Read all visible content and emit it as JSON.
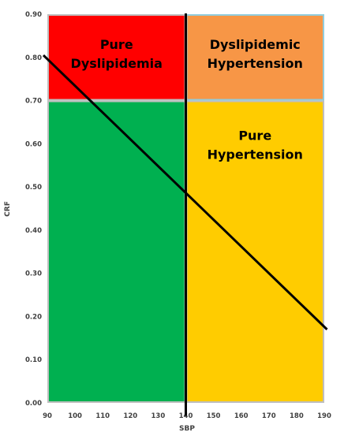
{
  "chart_data": {
    "type": "area",
    "xlabel": "SBP",
    "ylabel": "CRF",
    "xlim": [
      90,
      190
    ],
    "ylim": [
      0,
      0.9
    ],
    "x_ticks": [
      "90",
      "100",
      "110",
      "120",
      "130",
      "140",
      "150",
      "160",
      "170",
      "180",
      "190"
    ],
    "y_ticks": [
      "0.00",
      "0.10",
      "0.20",
      "0.30",
      "0.40",
      "0.50",
      "0.60",
      "0.70",
      "0.80",
      "0.90"
    ],
    "regions": [
      {
        "label_lines": [
          "Pure",
          "Dyslipidemia"
        ],
        "x": [
          90,
          140
        ],
        "y": [
          0.7,
          0.9
        ],
        "fill": "#FF0000",
        "border": "#BFBFBF",
        "text_color": "#000000"
      },
      {
        "label_lines": [
          "Dyslipidemic",
          "Hypertension"
        ],
        "x": [
          140,
          190
        ],
        "y": [
          0.7,
          0.9
        ],
        "fill": "#F79646",
        "border": "#92CDDC",
        "text_color": "#000000"
      },
      {
        "label_lines": [
          "",
          ""
        ],
        "x": [
          90,
          140
        ],
        "y": [
          0,
          0.7
        ],
        "fill": "#00B050",
        "border": "#BFBFBF",
        "text_color": "#000000"
      },
      {
        "label_lines": [
          "Pure",
          "Hypertension"
        ],
        "x": [
          140,
          190
        ],
        "y": [
          0,
          0.7
        ],
        "fill": "#FFCC00",
        "border": "#BFBFBF",
        "text_color": "#000000"
      }
    ],
    "divider": {
      "x": 140,
      "y0": -0.03,
      "y1": 0.9,
      "color": "#000000"
    },
    "trend_line": {
      "points": [
        [
          90,
          0.805
        ],
        [
          191,
          0.17
        ]
      ],
      "color": "#000000"
    }
  }
}
